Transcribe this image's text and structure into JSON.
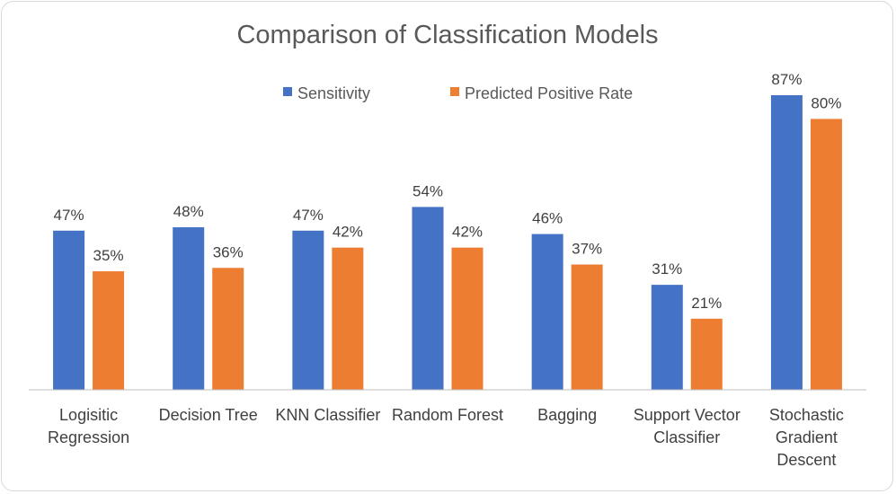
{
  "chart_data": {
    "type": "bar",
    "title": "Comparison of Classification Models",
    "categories": [
      [
        "Logisitic",
        "Regression"
      ],
      [
        "Decision Tree"
      ],
      [
        "KNN Classifier"
      ],
      [
        "Random Forest"
      ],
      [
        "Bagging"
      ],
      [
        "Support Vector",
        "Classifier"
      ],
      [
        "Stochastic",
        "Gradient",
        "Descent"
      ]
    ],
    "series": [
      {
        "name": "Sensitivity",
        "color": "#4472C4",
        "values": [
          47,
          48,
          47,
          54,
          46,
          31,
          87
        ],
        "labels": [
          "47%",
          "48%",
          "47%",
          "54%",
          "46%",
          "31%",
          "87%"
        ]
      },
      {
        "name": "Predicted Positive Rate",
        "color": "#ED7D31",
        "values": [
          35,
          36,
          42,
          42,
          37,
          21,
          80
        ],
        "labels": [
          "35%",
          "36%",
          "42%",
          "42%",
          "37%",
          "21%",
          "80%"
        ]
      }
    ],
    "ylim": [
      0,
      87
    ],
    "value_format": "percent",
    "legend_position": "top",
    "grid": false,
    "xlabel": "",
    "ylabel": ""
  }
}
